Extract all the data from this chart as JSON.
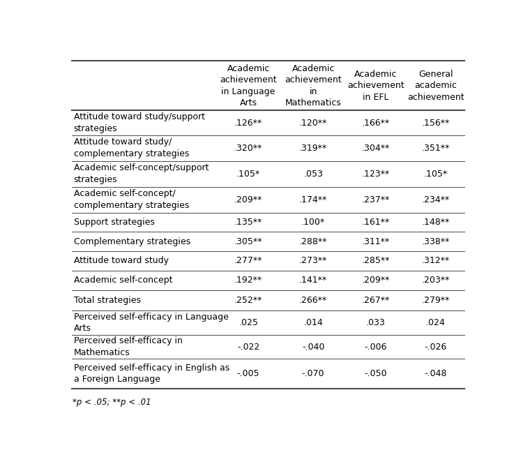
{
  "col_headers": [
    "Academic\nachievement\nin Language\nArts",
    "Academic\nachievement\nin\nMathematics",
    "Academic\nachievement\nin EFL",
    "General\nacademic\nachievement"
  ],
  "rows": [
    {
      "label": "Attitude toward study/support\nstrategies",
      "values": [
        ".126**",
        ".120**",
        ".166**",
        ".156**"
      ],
      "two_line": true
    },
    {
      "label": "Attitude toward study/\ncomplementary strategies",
      "values": [
        ".320**",
        ".319**",
        ".304**",
        ".351**"
      ],
      "two_line": true
    },
    {
      "label": "Academic self-concept/support\nstrategies",
      "values": [
        ".105*",
        ".053",
        ".123**",
        ".105*"
      ],
      "two_line": true
    },
    {
      "label": "Academic self-concept/\ncomplementary strategies",
      "values": [
        ".209**",
        ".174**",
        ".237**",
        ".234**"
      ],
      "two_line": true
    },
    {
      "label": "Support strategies",
      "values": [
        ".135**",
        ".100*",
        ".161**",
        ".148**"
      ],
      "two_line": false
    },
    {
      "label": "Complementary strategies",
      "values": [
        ".305**",
        ".288**",
        ".311**",
        ".338**"
      ],
      "two_line": false
    },
    {
      "label": "Attitude toward study",
      "values": [
        ".277**",
        ".273**",
        ".285**",
        ".312**"
      ],
      "two_line": false
    },
    {
      "label": "Academic self-concept",
      "values": [
        ".192**",
        ".141**",
        ".209**",
        ".203**"
      ],
      "two_line": false
    },
    {
      "label": "Total strategies",
      "values": [
        ".252**",
        ".266**",
        ".267**",
        ".279**"
      ],
      "two_line": false
    },
    {
      "label": "Perceived self-efficacy in Language\nArts",
      "values": [
        ".025",
        ".014",
        ".033",
        ".024"
      ],
      "two_line": true
    },
    {
      "label": "Perceived self-efficacy in\nMathematics",
      "values": [
        "-.022",
        "-.040",
        "-.006",
        "-.026"
      ],
      "two_line": true
    },
    {
      "label": "Perceived self-efficacy in English as\na Foreign Language",
      "values": [
        "-.005",
        "-.070",
        "-.050",
        "-.048"
      ],
      "two_line": true
    }
  ],
  "footnote": "*p < .05; **p < .01",
  "font_size": 9.0,
  "text_color": "#000000",
  "line_color": "#4a4a4a",
  "fig_width": 7.47,
  "fig_height": 6.65,
  "dpi": 100
}
